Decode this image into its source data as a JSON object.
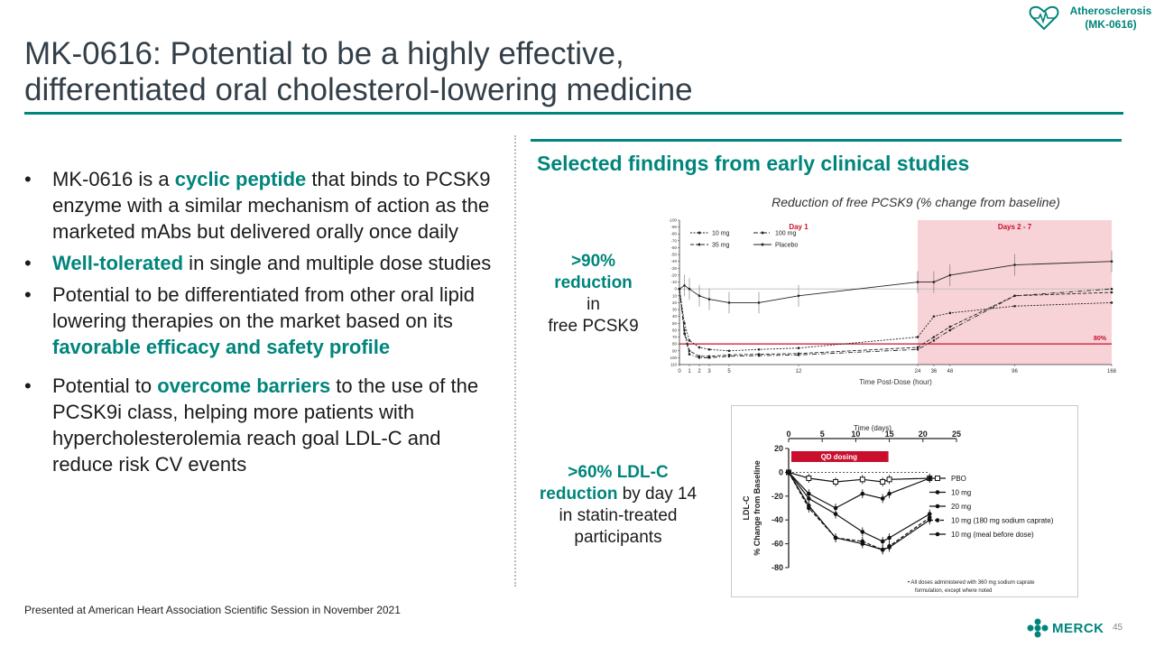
{
  "badge": {
    "line1": "Atherosclerosis",
    "line2": "(MK-0616)"
  },
  "title": {
    "line1": "MK-0616: Potential to be a highly effective,",
    "line2": "differentiated oral cholesterol-lowering medicine"
  },
  "bullets": [
    {
      "parts": [
        {
          "t": "MK-0616 is a ",
          "b": false
        },
        {
          "t": "cyclic peptide",
          "b": true
        },
        {
          "t": " that binds to PCSK9 enzyme with a similar mechanism of action as the marketed mAbs but delivered orally once daily",
          "b": false
        }
      ]
    },
    {
      "parts": [
        {
          "t": "Well-tolerated",
          "b": true
        },
        {
          "t": " in single and multiple dose studies",
          "b": false
        }
      ]
    },
    {
      "parts": [
        {
          "t": "Potential to be differentiated from other oral lipid lowering therapies on the market based on its ",
          "b": false
        },
        {
          "t": "favorable efficacy and safety profile",
          "b": true
        }
      ]
    },
    {
      "parts": [
        {
          "t": "Potential to ",
          "b": false
        },
        {
          "t": "overcome barriers",
          "b": true
        },
        {
          "t": " to the use of the PCSK9i class, helping more patients with hypercholesterolemia reach goal LDL-C and reduce risk CV events",
          "b": false
        }
      ]
    }
  ],
  "right_heading": "Selected findings from early clinical studies",
  "stat1": {
    "highlight": ">90% reduction",
    "rest_inline": " in",
    "rest": "free PCSK9"
  },
  "stat2": {
    "highlight1": ">60% LDL-C",
    "highlight2": "reduction",
    "rest_inline": " by day 14",
    "rest": "in statin-treated participants"
  },
  "footnote": "Presented at American Heart Association Scientific Session in November 2021",
  "merck_logo": "MERCK",
  "page_number": "45",
  "colors": {
    "accent": "#00857c",
    "title": "#333f48",
    "red": "#c8102e",
    "pink": "#f7d3d7"
  },
  "chart_data": [
    {
      "type": "line",
      "title": "Reduction of free PCSK9 (% change from baseline)",
      "xlabel": "Time Post-Dose (hour)",
      "ylabel": "",
      "x_ticks": [
        "0",
        "1",
        "2",
        "3",
        "5",
        "12",
        "24",
        "36",
        "48",
        "96",
        "168"
      ],
      "y_ticks": [
        "-100",
        "-90",
        "-80",
        "-70",
        "-60",
        "-50",
        "-40",
        "-30",
        "-20",
        "-10",
        "0",
        "10",
        "20",
        "30",
        "40",
        "50",
        "60",
        "70",
        "80",
        "90",
        "100",
        "110"
      ],
      "ylim": [
        -100,
        110
      ],
      "y_inverted": true,
      "regions": [
        {
          "label": "Day 1",
          "from": 0,
          "to": 24
        },
        {
          "label": "Days 2 - 7",
          "from": 24,
          "to": 168
        }
      ],
      "reference_line": {
        "y": 80,
        "label": "80%"
      },
      "legend": [
        "10 mg",
        "100 mg",
        "35 mg",
        "Placebo"
      ],
      "legend_position": "top-left",
      "x": [
        0,
        0.5,
        1,
        2,
        3,
        5,
        8,
        12,
        24,
        36,
        48,
        96,
        168
      ],
      "series": [
        {
          "name": "Placebo",
          "values": [
            0,
            -5,
            0,
            10,
            15,
            20,
            20,
            10,
            -10,
            -10,
            -20,
            -35,
            -40
          ]
        },
        {
          "name": "10 mg",
          "values": [
            0,
            50,
            75,
            85,
            88,
            90,
            88,
            86,
            70,
            40,
            35,
            25,
            20
          ]
        },
        {
          "name": "35 mg",
          "values": [
            0,
            60,
            90,
            98,
            98,
            96,
            95,
            94,
            85,
            70,
            55,
            10,
            5
          ]
        },
        {
          "name": "100 mg",
          "values": [
            0,
            65,
            95,
            100,
            100,
            98,
            97,
            96,
            88,
            75,
            60,
            10,
            0
          ]
        }
      ]
    },
    {
      "type": "line",
      "title": "Time (days)",
      "xlabel": "Time (days)",
      "ylabel": "LDL-C % Change from Baseline",
      "x_ticks": [
        "0",
        "5",
        "10",
        "15",
        "20",
        "25"
      ],
      "y_ticks": [
        "20",
        "0",
        "-20",
        "-40",
        "-60",
        "-80"
      ],
      "xlim": [
        0,
        25
      ],
      "ylim": [
        -80,
        20
      ],
      "dosing_bar": {
        "label": "QD dosing",
        "from": 0,
        "to": 15
      },
      "legend": [
        "PBO",
        "10 mg",
        "20 mg",
        "10 mg (180 mg sodium caprate)",
        "10 mg (meal before dose)"
      ],
      "legend_position": "right",
      "footnote_line1": "All doses administered with 360 mg sodium caprate",
      "footnote_line2": "formulation, except where noted",
      "x": [
        0,
        3,
        7,
        11,
        14,
        15,
        21
      ],
      "series": [
        {
          "name": "PBO",
          "values": [
            0,
            -5,
            -8,
            -6,
            -8,
            -6,
            -5
          ]
        },
        {
          "name": "10 mg",
          "values": [
            0,
            -18,
            -30,
            -18,
            -22,
            -18,
            -5
          ]
        },
        {
          "name": "20 mg",
          "values": [
            0,
            -22,
            -35,
            -50,
            -58,
            -55,
            -35
          ]
        },
        {
          "name": "10 mg (180 mg sodium caprate)",
          "values": [
            0,
            -30,
            -55,
            -58,
            -65,
            -62,
            -38
          ]
        },
        {
          "name": "10 mg (meal before dose)",
          "values": [
            0,
            -28,
            -55,
            -60,
            -65,
            -63,
            -40
          ]
        }
      ]
    }
  ]
}
